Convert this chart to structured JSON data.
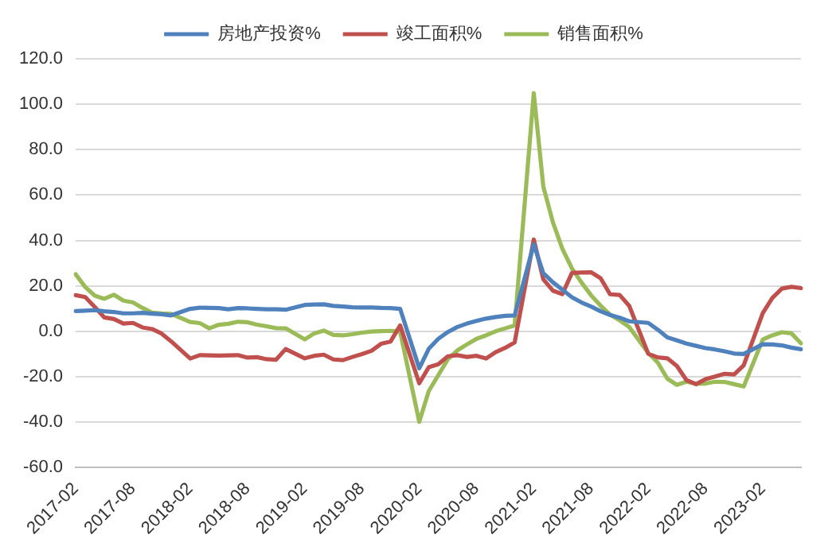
{
  "chart_data": {
    "type": "line",
    "categories": [
      "2017-02",
      null,
      null,
      null,
      null,
      null,
      "2017-08",
      null,
      null,
      null,
      null,
      null,
      "2018-02",
      null,
      null,
      null,
      null,
      null,
      "2018-08",
      null,
      null,
      null,
      null,
      null,
      "2019-02",
      null,
      null,
      null,
      null,
      null,
      "2019-08",
      null,
      null,
      null,
      null,
      null,
      "2020-02",
      null,
      null,
      null,
      null,
      null,
      "2020-08",
      null,
      null,
      null,
      null,
      null,
      "2021-02",
      null,
      null,
      null,
      null,
      null,
      "2021-08",
      null,
      null,
      null,
      null,
      null,
      "2022-02",
      null,
      null,
      null,
      null,
      null,
      "2022-08",
      null,
      null,
      null,
      null,
      null,
      "2023-02",
      null,
      null,
      null,
      null
    ],
    "series": [
      {
        "name": "房地产投资%",
        "color": "#4f81bd",
        "values": [
          8.9,
          9.1,
          9.3,
          8.8,
          8.5,
          7.9,
          7.9,
          8.1,
          7.8,
          7.5,
          7.0,
          null,
          9.9,
          10.4,
          10.3,
          10.2,
          9.7,
          10.2,
          10.1,
          9.9,
          9.7,
          9.7,
          9.5,
          null,
          11.6,
          11.8,
          11.9,
          11.2,
          10.9,
          10.6,
          10.5,
          10.5,
          10.3,
          10.2,
          9.9,
          null,
          -16.3,
          -7.7,
          -3.3,
          -0.3,
          1.9,
          3.4,
          4.6,
          5.6,
          6.3,
          6.8,
          7.0,
          null,
          38.3,
          25.6,
          21.6,
          18.3,
          15.0,
          12.7,
          10.9,
          8.8,
          7.2,
          6.0,
          4.4,
          null,
          3.7,
          0.7,
          -2.7,
          -4.0,
          -5.4,
          -6.4,
          -7.4,
          -8.0,
          -8.8,
          -9.8,
          -10.0,
          null,
          -5.7,
          -5.8,
          -6.2,
          -7.2,
          -7.9
        ]
      },
      {
        "name": "竣工面积%",
        "color": "#c0504d",
        "values": [
          15.9,
          15.1,
          10.7,
          6.1,
          5.4,
          3.4,
          3.7,
          1.7,
          1.0,
          -1.0,
          -4.4,
          null,
          -12.0,
          -10.5,
          -10.6,
          -10.7,
          -10.6,
          -10.5,
          -11.6,
          -11.4,
          -12.3,
          -12.5,
          -7.8,
          null,
          -11.9,
          -10.8,
          -10.3,
          -12.4,
          -12.7,
          -11.3,
          -10.0,
          -8.6,
          -5.5,
          -4.5,
          2.6,
          null,
          -22.9,
          -15.8,
          -14.5,
          -11.0,
          -10.5,
          -11.3,
          -10.8,
          -12.0,
          -9.2,
          -7.3,
          -4.9,
          null,
          40.4,
          22.9,
          17.9,
          16.4,
          25.7,
          25.9,
          26.0,
          23.4,
          16.3,
          16.0,
          11.2,
          null,
          -9.9,
          -11.5,
          -11.9,
          -15.3,
          -21.5,
          -23.3,
          -21.1,
          -19.9,
          -18.7,
          -19.0,
          -15.0,
          null,
          8.0,
          14.7,
          18.8,
          19.6,
          19.0
        ]
      },
      {
        "name": "销售面积%",
        "color": "#9bbb59",
        "values": [
          25.1,
          19.5,
          15.7,
          14.3,
          16.1,
          13.5,
          12.7,
          10.3,
          8.2,
          7.9,
          7.7,
          null,
          4.1,
          3.6,
          1.3,
          2.9,
          3.3,
          4.2,
          4.0,
          2.9,
          2.2,
          1.4,
          1.3,
          null,
          -3.6,
          -0.9,
          0.3,
          -1.6,
          -1.8,
          -1.3,
          -0.6,
          -0.1,
          0.1,
          0.2,
          -0.1,
          null,
          -39.9,
          -26.3,
          -19.3,
          -12.3,
          -8.4,
          -5.8,
          -3.3,
          -1.8,
          0.0,
          1.3,
          2.6,
          null,
          104.9,
          63.8,
          48.1,
          36.3,
          27.7,
          21.5,
          15.9,
          11.3,
          7.3,
          4.8,
          1.9,
          null,
          -9.6,
          -13.8,
          -20.9,
          -23.6,
          -22.2,
          -23.1,
          -23.0,
          -22.2,
          -22.3,
          -23.3,
          -24.3,
          null,
          -3.6,
          -1.8,
          -0.4,
          -0.9,
          -5.3
        ]
      }
    ],
    "ylim": [
      -60,
      120
    ],
    "yticks": [
      {
        "value": -60,
        "label": "-60.0"
      },
      {
        "value": -40,
        "label": "-40.0"
      },
      {
        "value": -20,
        "label": "-20.0"
      },
      {
        "value": 0,
        "label": "0.0"
      },
      {
        "value": 20,
        "label": "20.0"
      },
      {
        "value": 40,
        "label": "40.0"
      },
      {
        "value": 60,
        "label": "60.0"
      },
      {
        "value": 80,
        "label": "80.0"
      },
      {
        "value": 100,
        "label": "100.0"
      },
      {
        "value": 120,
        "label": "120.0"
      }
    ],
    "grid": "y",
    "legend": "top",
    "marker": "none",
    "line_style": "solid"
  }
}
